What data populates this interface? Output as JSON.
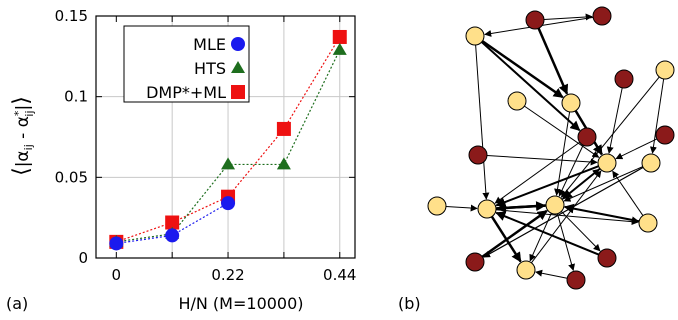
{
  "panel_labels": {
    "a": "(a)",
    "b": "(b)"
  },
  "chart_data": {
    "type": "scatter",
    "xlabel": "H/N (M=10000)",
    "ylabel_parts": {
      "open": "⟨",
      "bar": "|",
      "alpha": "α",
      "sub": "ij",
      "minus": " - ",
      "star": "*",
      "close": "⟩"
    },
    "xlim": [
      -0.04,
      0.47
    ],
    "ylim": [
      0,
      0.15
    ],
    "x_ticks": [
      0,
      0.11,
      0.22,
      0.33,
      0.44
    ],
    "x_tick_labels": [
      "0",
      "",
      "0.22",
      "",
      "0.44"
    ],
    "y_ticks": [
      0,
      0.05,
      0.1,
      0.15
    ],
    "y_tick_labels": [
      "0",
      "0.05",
      "0.1",
      "0.15"
    ],
    "legend_placement": "top-left",
    "series": [
      {
        "name": "MLE",
        "marker": "circle",
        "color": "#1a1aee",
        "x": [
          0,
          0.11,
          0.22
        ],
        "y": [
          0.009,
          0.014,
          0.034
        ]
      },
      {
        "name": "HTS",
        "marker": "triangle",
        "color": "#1e6e1e",
        "x": [
          0,
          0.11,
          0.22,
          0.33,
          0.44
        ],
        "y": [
          0.01,
          0.015,
          0.058,
          0.058,
          0.129
        ]
      },
      {
        "name": "DMP*+ML",
        "marker": "square",
        "color": "#ee1111",
        "x": [
          0,
          0.11,
          0.22,
          0.33,
          0.44
        ],
        "y": [
          0.01,
          0.022,
          0.038,
          0.08,
          0.137
        ]
      }
    ]
  },
  "network": {
    "colors": {
      "light": "#ffe08a",
      "dark": "#8b1a1a"
    },
    "nodes": [
      {
        "id": "n1",
        "type": "dark"
      },
      {
        "id": "n2",
        "type": "dark"
      },
      {
        "id": "n3",
        "type": "light"
      },
      {
        "id": "n4",
        "type": "light"
      },
      {
        "id": "n5",
        "type": "dark"
      },
      {
        "id": "n6",
        "type": "dark"
      },
      {
        "id": "n7",
        "type": "dark"
      },
      {
        "id": "n8",
        "type": "light"
      },
      {
        "id": "n9",
        "type": "light"
      },
      {
        "id": "n10",
        "type": "dark"
      },
      {
        "id": "n11",
        "type": "light"
      },
      {
        "id": "n12",
        "type": "light"
      },
      {
        "id": "n13",
        "type": "light"
      },
      {
        "id": "n14",
        "type": "light"
      },
      {
        "id": "n15",
        "type": "light"
      },
      {
        "id": "n16",
        "type": "light"
      },
      {
        "id": "n17",
        "type": "dark"
      },
      {
        "id": "n18",
        "type": "dark"
      },
      {
        "id": "n19",
        "type": "dark"
      },
      {
        "id": "n20",
        "type": "light"
      }
    ],
    "edges": [
      {
        "from": "n2",
        "to": "n1",
        "weight": 1
      },
      {
        "from": "n1",
        "to": "n3",
        "weight": 1
      },
      {
        "from": "n2",
        "to": "n9",
        "weight": 2.5
      },
      {
        "from": "n3",
        "to": "n9",
        "weight": 2.5
      },
      {
        "from": "n3",
        "to": "n10",
        "weight": 2
      },
      {
        "from": "n3",
        "to": "n13",
        "weight": 1
      },
      {
        "from": "n4",
        "to": "n12",
        "weight": 1
      },
      {
        "from": "n4",
        "to": "n14",
        "weight": 1
      },
      {
        "from": "n5",
        "to": "n11",
        "weight": 1
      },
      {
        "from": "n6",
        "to": "n11",
        "weight": 1
      },
      {
        "from": "n7",
        "to": "n11",
        "weight": 1
      },
      {
        "from": "n8",
        "to": "n11",
        "weight": 1
      },
      {
        "from": "n9",
        "to": "n11",
        "weight": 2.5
      },
      {
        "from": "n9",
        "to": "n14",
        "weight": 1
      },
      {
        "from": "n12",
        "to": "n14",
        "weight": 1
      },
      {
        "from": "n12",
        "to": "n18",
        "weight": 1.2
      },
      {
        "from": "n11",
        "to": "n13",
        "weight": 2
      },
      {
        "from": "n11",
        "to": "n14",
        "weight": 2
      },
      {
        "from": "n10",
        "to": "n13",
        "weight": 1
      },
      {
        "from": "n13",
        "to": "n14",
        "weight": 2.5
      },
      {
        "from": "n13",
        "to": "n20",
        "weight": 1
      },
      {
        "from": "n13",
        "to": "n16",
        "weight": 1
      },
      {
        "from": "n15",
        "to": "n13",
        "weight": 1
      },
      {
        "from": "n14",
        "to": "n11",
        "weight": 1
      },
      {
        "from": "n14",
        "to": "n13",
        "weight": 2.5
      },
      {
        "from": "n14",
        "to": "n16",
        "weight": 1
      },
      {
        "from": "n14",
        "to": "n17",
        "weight": 1
      },
      {
        "from": "n14",
        "to": "n19",
        "weight": 1
      },
      {
        "from": "n14",
        "to": "n20",
        "weight": 1
      },
      {
        "from": "n16",
        "to": "n11",
        "weight": 1
      },
      {
        "from": "n16",
        "to": "n14",
        "weight": 2
      },
      {
        "from": "n17",
        "to": "n13",
        "weight": 2
      },
      {
        "from": "n18",
        "to": "n14",
        "weight": 2.5
      },
      {
        "from": "n13",
        "to": "n20",
        "weight": 2.5
      },
      {
        "from": "n20",
        "to": "n11",
        "weight": 1
      },
      {
        "from": "n19",
        "to": "n20",
        "weight": 1
      },
      {
        "from": "n10",
        "to": "n14",
        "weight": 1
      }
    ]
  }
}
